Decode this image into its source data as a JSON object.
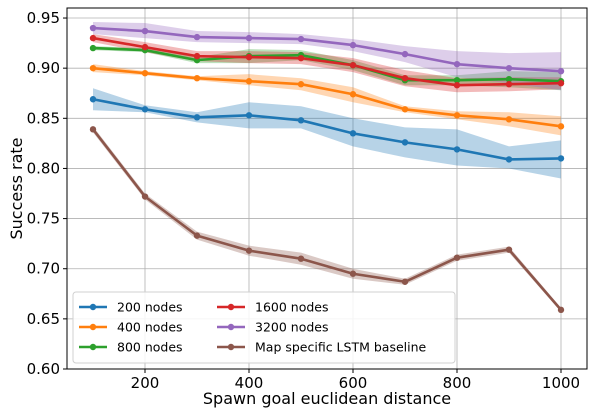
{
  "chart_data": {
    "type": "line",
    "title": "",
    "xlabel": "Spawn goal euclidean distance",
    "ylabel": "Success rate",
    "x": [
      100,
      200,
      300,
      400,
      500,
      600,
      700,
      800,
      900,
      1000
    ],
    "xticks": [
      "200",
      "400",
      "600",
      "800",
      "1000"
    ],
    "xtick_values": [
      200,
      400,
      600,
      800,
      1000
    ],
    "yticks": [
      "0.60",
      "0.65",
      "0.70",
      "0.75",
      "0.80",
      "0.85",
      "0.90",
      "0.95"
    ],
    "ytick_values": [
      0.6,
      0.65,
      0.7,
      0.75,
      0.8,
      0.85,
      0.9,
      0.95
    ],
    "xlim": [
      50,
      1050
    ],
    "ylim": [
      0.6,
      0.96
    ],
    "grid": true,
    "legend_position": "bottom-left",
    "legend_columns": 2,
    "series": [
      {
        "name": "200 nodes",
        "color": "#1f77b4",
        "values": [
          0.869,
          0.859,
          0.851,
          0.853,
          0.848,
          0.835,
          0.826,
          0.819,
          0.809,
          0.81
        ],
        "lower": [
          0.858,
          0.856,
          0.846,
          0.84,
          0.84,
          0.822,
          0.811,
          0.803,
          0.8,
          0.79
        ],
        "upper": [
          0.88,
          0.863,
          0.856,
          0.866,
          0.862,
          0.85,
          0.841,
          0.839,
          0.822,
          0.828
        ]
      },
      {
        "name": "400 nodes",
        "color": "#ff7f0e",
        "values": [
          0.9,
          0.895,
          0.89,
          0.887,
          0.884,
          0.874,
          0.859,
          0.853,
          0.849,
          0.842
        ],
        "lower": [
          0.896,
          0.893,
          0.888,
          0.883,
          0.878,
          0.866,
          0.856,
          0.849,
          0.842,
          0.833
        ],
        "upper": [
          0.904,
          0.897,
          0.892,
          0.894,
          0.89,
          0.881,
          0.862,
          0.857,
          0.856,
          0.852
        ]
      },
      {
        "name": "800 nodes",
        "color": "#2ca02c",
        "values": [
          0.92,
          0.918,
          0.908,
          0.912,
          0.913,
          0.903,
          0.888,
          0.888,
          0.889,
          0.887
        ],
        "lower": [
          0.918,
          0.916,
          0.905,
          0.905,
          0.908,
          0.898,
          0.883,
          0.883,
          0.881,
          0.878
        ],
        "upper": [
          0.922,
          0.92,
          0.911,
          0.919,
          0.918,
          0.908,
          0.893,
          0.893,
          0.897,
          0.896
        ]
      },
      {
        "name": "1600 nodes",
        "color": "#d62728",
        "values": [
          0.93,
          0.921,
          0.912,
          0.911,
          0.91,
          0.903,
          0.89,
          0.883,
          0.884,
          0.885
        ],
        "lower": [
          0.926,
          0.916,
          0.907,
          0.905,
          0.904,
          0.896,
          0.882,
          0.876,
          0.877,
          0.879
        ],
        "upper": [
          0.934,
          0.926,
          0.917,
          0.917,
          0.916,
          0.91,
          0.898,
          0.89,
          0.891,
          0.891
        ]
      },
      {
        "name": "3200 nodes",
        "color": "#9467bd",
        "values": [
          0.94,
          0.937,
          0.931,
          0.93,
          0.929,
          0.923,
          0.914,
          0.904,
          0.9,
          0.897
        ],
        "lower": [
          0.934,
          0.93,
          0.926,
          0.925,
          0.924,
          0.917,
          0.906,
          0.891,
          0.885,
          0.878
        ],
        "upper": [
          0.946,
          0.945,
          0.937,
          0.936,
          0.934,
          0.929,
          0.922,
          0.917,
          0.915,
          0.916
        ]
      },
      {
        "name": "Map specific LSTM baseline",
        "color": "#8c564b",
        "values": [
          0.839,
          0.772,
          0.733,
          0.718,
          0.71,
          0.695,
          0.687,
          0.711,
          0.719,
          0.659
        ],
        "lower": [
          0.836,
          0.769,
          0.729,
          0.713,
          0.704,
          0.69,
          0.684,
          0.708,
          0.716,
          0.657
        ],
        "upper": [
          0.842,
          0.775,
          0.737,
          0.723,
          0.716,
          0.7,
          0.69,
          0.714,
          0.722,
          0.661
        ]
      }
    ]
  }
}
